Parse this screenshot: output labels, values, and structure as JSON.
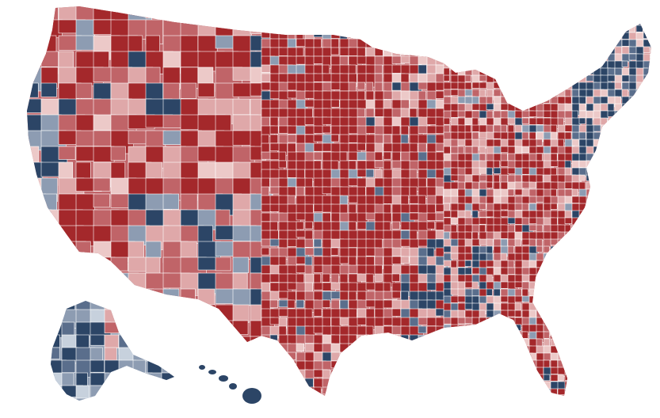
{
  "map": {
    "palette": {
      "strong_red": "#a4282b",
      "medium_red": "#c06468",
      "light_red": "#dfa8a9",
      "pale_red": "#ecc9c8",
      "pale_blue": "#c7d1dd",
      "light_blue": "#8d9cb2",
      "medium_blue": "#5a6e8c",
      "strong_blue": "#2c4566",
      "border": "#ffffff",
      "background": "#ffffff"
    },
    "regions": [
      "contiguous-us",
      "alaska",
      "hawaii"
    ]
  }
}
